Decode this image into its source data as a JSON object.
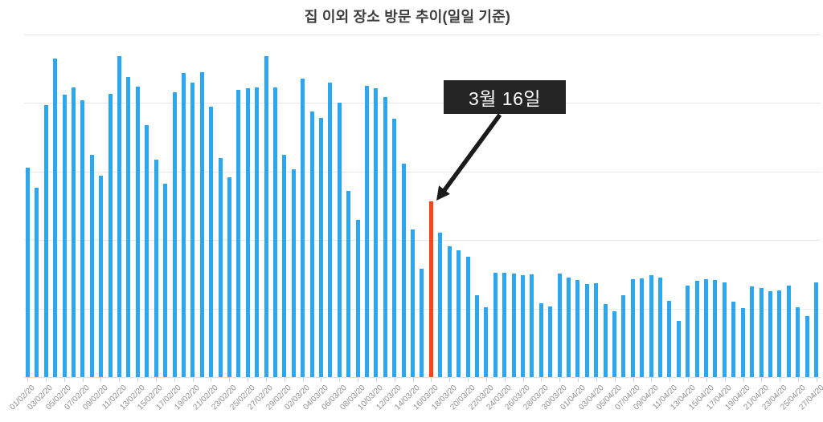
{
  "title": "집 이외 장소 방문 추이(일일 기준)",
  "annotation": {
    "label": "3월 16일",
    "target_date": "16/03/20"
  },
  "colors": {
    "bar": "#2ba6f0",
    "highlight": "#fc4516",
    "grid": "#e7e7e7",
    "baseline": "#dedede",
    "tick": "#cfcfcf",
    "axis_label": "#8f8f8f",
    "title_text": "#3d3d3d",
    "annotation_bg": "#252525",
    "annotation_text": "#ffffff",
    "arrow": "#1b1b1b"
  },
  "chart_data": {
    "type": "bar",
    "title": "집 이외 장소 방문 추이(일일 기준)",
    "xlabel": "",
    "ylabel": "",
    "ylim": [
      0,
      100
    ],
    "grid": "horizontal",
    "y_axis_labels_visible": false,
    "x_label_step": 2,
    "highlight_index": 44,
    "highlight_date": "16/03/20",
    "x": [
      "01/02/20",
      "02/02/20",
      "03/02/20",
      "04/02/20",
      "05/02/20",
      "06/02/20",
      "07/02/20",
      "08/02/20",
      "09/02/20",
      "10/02/20",
      "11/02/20",
      "12/02/20",
      "13/02/20",
      "14/02/20",
      "15/02/20",
      "16/02/20",
      "17/02/20",
      "18/02/20",
      "19/02/20",
      "20/02/20",
      "21/02/20",
      "22/02/20",
      "23/02/20",
      "24/02/20",
      "25/02/20",
      "26/02/20",
      "27/02/20",
      "28/02/20",
      "29/02/20",
      "01/03/20",
      "02/03/20",
      "03/03/20",
      "04/03/20",
      "05/03/20",
      "06/03/20",
      "07/03/20",
      "08/03/20",
      "09/03/20",
      "10/03/20",
      "11/03/20",
      "12/03/20",
      "13/03/20",
      "14/03/20",
      "15/03/20",
      "16/03/20",
      "17/03/20",
      "18/03/20",
      "19/03/20",
      "20/03/20",
      "21/03/20",
      "22/03/20",
      "23/03/20",
      "24/03/20",
      "25/03/20",
      "26/03/20",
      "27/03/20",
      "28/03/20",
      "29/03/20",
      "30/03/20",
      "31/03/20",
      "01/04/20",
      "02/04/20",
      "03/04/20",
      "04/04/20",
      "05/04/20",
      "06/04/20",
      "07/04/20",
      "08/04/20",
      "09/04/20",
      "10/04/20",
      "11/04/20",
      "12/04/20",
      "13/04/20",
      "14/04/20",
      "15/04/20",
      "16/04/20",
      "17/04/20",
      "18/04/20",
      "19/04/20",
      "20/04/20",
      "21/04/20",
      "22/04/20",
      "23/04/20",
      "24/04/20",
      "25/04/20",
      "26/04/20",
      "27/04/20"
    ],
    "values": [
      61.1,
      55.3,
      79.4,
      93.0,
      82.4,
      84.5,
      80.8,
      64.9,
      58.8,
      82.7,
      93.7,
      87.6,
      84.8,
      73.5,
      63.5,
      56.4,
      83.1,
      88.8,
      85.9,
      89.0,
      78.9,
      63.9,
      58.3,
      83.8,
      84.3,
      84.5,
      93.7,
      84.5,
      64.9,
      60.7,
      87.1,
      77.5,
      75.6,
      85.9,
      80.1,
      54.3,
      45.9,
      85.0,
      84.3,
      81.7,
      75.4,
      62.3,
      43.1,
      31.6,
      51.3,
      42.2,
      38.2,
      37.0,
      35.1,
      23.9,
      20.4,
      30.4,
      30.4,
      30.2,
      29.7,
      30.0,
      21.5,
      20.6,
      30.2,
      29.0,
      28.3,
      27.2,
      27.4,
      21.3,
      19.2,
      23.9,
      28.6,
      28.8,
      29.7,
      29.0,
      22.2,
      16.4,
      26.7,
      28.1,
      28.6,
      28.3,
      27.6,
      22.0,
      20.1,
      26.5,
      26.0,
      25.1,
      25.3,
      26.7,
      20.4,
      17.8,
      27.6
    ],
    "x_tick_labels": [
      "01/02/20",
      "03/02/20",
      "05/02/20",
      "07/02/20",
      "09/02/20",
      "11/02/20",
      "13/02/20",
      "15/02/20",
      "17/02/20",
      "19/02/20",
      "21/02/20",
      "23/02/20",
      "25/02/20",
      "27/02/20",
      "29/02/20",
      "02/03/20",
      "04/03/20",
      "06/03/20",
      "08/03/20",
      "10/03/20",
      "12/03/20",
      "14/03/20",
      "16/03/20",
      "18/03/20",
      "20/03/20",
      "22/03/20",
      "24/03/20",
      "26/03/20",
      "28/03/20",
      "30/03/20",
      "01/04/20",
      "03/04/20",
      "05/04/20",
      "07/04/20",
      "09/04/20",
      "11/04/20",
      "13/04/20",
      "15/04/20",
      "17/04/20",
      "19/04/20",
      "21/04/20",
      "23/04/20",
      "25/04/20",
      "27/04/20"
    ]
  }
}
